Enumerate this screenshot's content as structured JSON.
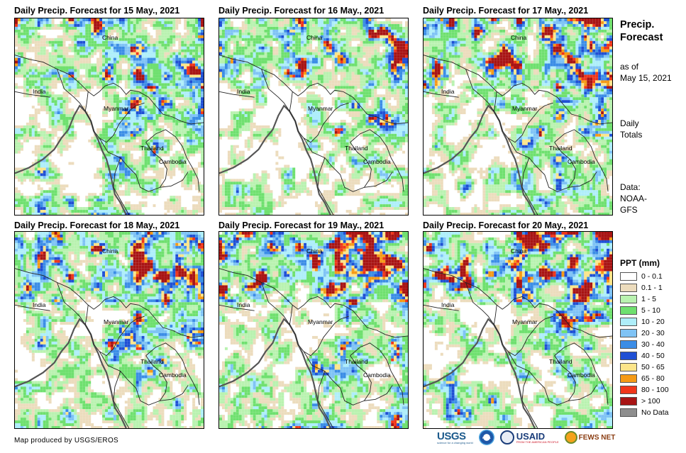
{
  "panels": [
    {
      "title": "Daily Precip. Forecast for 15 May., 2021",
      "seed": 15,
      "intensity": 0.6
    },
    {
      "title": "Daily Precip. Forecast for 16 May., 2021",
      "seed": 16,
      "intensity": 0.5
    },
    {
      "title": "Daily Precip. Forecast for 17 May., 2021",
      "seed": 17,
      "intensity": 0.7
    },
    {
      "title": "Daily Precip. Forecast for 18 May., 2021",
      "seed": 18,
      "intensity": 0.8
    },
    {
      "title": "Daily Precip. Forecast for 19 May., 2021",
      "seed": 19,
      "intensity": 1.0
    },
    {
      "title": "Daily Precip. Forecast for 20 May., 2021",
      "seed": 20,
      "intensity": 0.9
    }
  ],
  "map_labels": {
    "china": "China",
    "india": "India",
    "myanmar": "Myanmar",
    "thailand": "Thailand",
    "cambodia": "Cambodia"
  },
  "sidebar": {
    "title_line1": "Precip.",
    "title_line2": "Forecast",
    "asof_line1": "as of",
    "asof_line2": "May 15, 2021",
    "totals_line1": "Daily",
    "totals_line2": "Totals",
    "data_line1": "Data:",
    "data_line2": "NOAA-",
    "data_line3": "GFS"
  },
  "legend": {
    "title": "PPT (mm)",
    "items": [
      {
        "label": "0 - 0.1",
        "color": "#ffffff"
      },
      {
        "label": "0.1 - 1",
        "color": "#ecdcbd"
      },
      {
        "label": "1 - 5",
        "color": "#b9f2b0"
      },
      {
        "label": "5 - 10",
        "color": "#6fe06f"
      },
      {
        "label": "10 - 20",
        "color": "#aeeefa"
      },
      {
        "label": "20 - 30",
        "color": "#7fc3f5"
      },
      {
        "label": "30 - 40",
        "color": "#3b8de6"
      },
      {
        "label": "40 - 50",
        "color": "#1f4fd4"
      },
      {
        "label": "50 - 65",
        "color": "#fce58a"
      },
      {
        "label": "65 - 80",
        "color": "#f59a16"
      },
      {
        "label": "80 - 100",
        "color": "#f0361a"
      },
      {
        "label": "> 100",
        "color": "#a81414"
      },
      {
        "label": "No Data",
        "color": "#8e8e8e"
      }
    ]
  },
  "credit": "Map produced by USGS/EROS",
  "logos": {
    "usgs": "USGS",
    "usgs_tag": "science for a changing world",
    "noaa": "NOAA",
    "usaid": "USAID",
    "usaid_tag": "FROM THE AMERICAN PEOPLE",
    "fewsnet": "FEWS NET"
  }
}
